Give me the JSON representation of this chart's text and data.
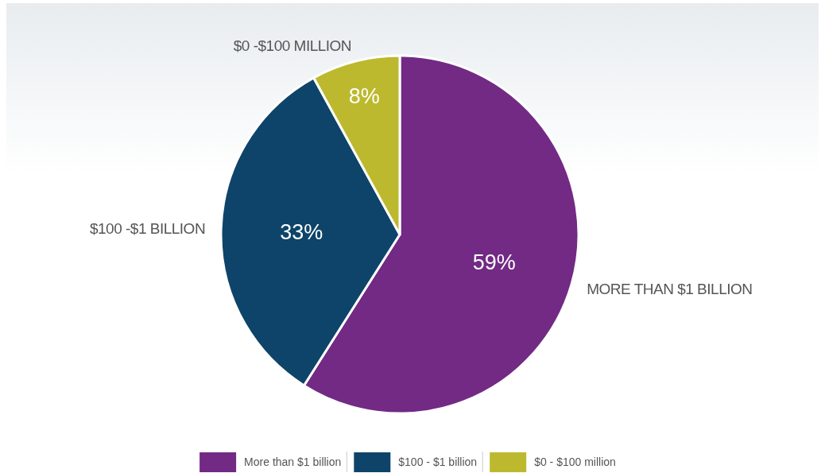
{
  "chart_data": {
    "type": "pie",
    "categories": [
      "More than $1 billion",
      "$100 - $1 billion",
      "$0 - $100 million"
    ],
    "values": [
      59,
      33,
      8
    ],
    "value_labels": [
      "59%",
      "33%",
      "8%"
    ],
    "colors": [
      "#722a84",
      "#0e4469",
      "#bdb92e"
    ],
    "annotations": [
      "MORE THAN $1 BILLION",
      "$100 -$1 BILLION",
      "$0 -$100 MILLION"
    ],
    "legend": "bottom"
  }
}
